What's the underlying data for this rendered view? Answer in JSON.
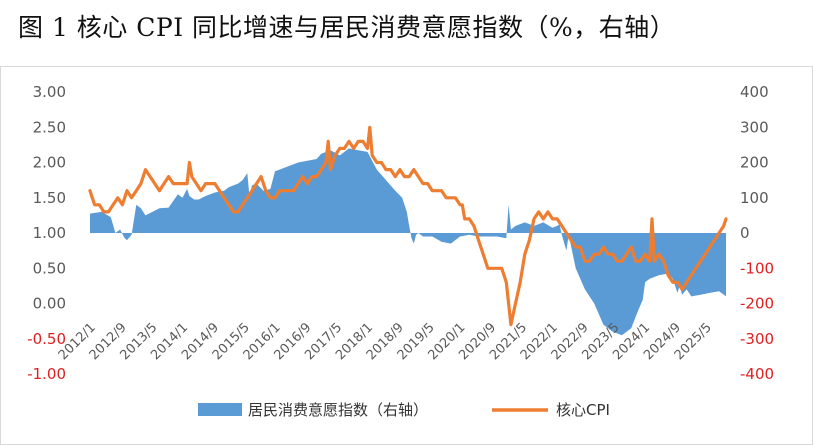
{
  "title": "图 1 核心 CPI 同比增速与居民消费意愿指数（%，右轴）",
  "chart_data": {
    "type": "line",
    "title": "图 1 核心 CPI 同比增速与居民消费意愿指数（%，右轴）",
    "left_axis": {
      "ylim": [
        -1.0,
        3.0
      ],
      "ticks": [
        "3.00",
        "2.50",
        "2.00",
        "1.50",
        "1.00",
        "0.50",
        "0.00",
        "-0.50",
        "-1.00"
      ]
    },
    "right_axis": {
      "ylim": [
        -400,
        400
      ],
      "ticks": [
        "400",
        "300",
        "200",
        "100",
        "0",
        "-100",
        "-200",
        "-300",
        "-400"
      ]
    },
    "x_tick_labels": [
      "2012/1",
      "2012/9",
      "2013/5",
      "2014/1",
      "2014/9",
      "2015/5",
      "2016/1",
      "2016/9",
      "2017/5",
      "2018/1",
      "2018/9",
      "2019/5",
      "2020/1",
      "2020/9",
      "2021/5",
      "2022/1",
      "2022/9",
      "2023/5",
      "2024/1",
      "2024/9",
      "2025/5"
    ],
    "x_range": [
      2012.0,
      2025.75
    ],
    "legend": {
      "placement": "bottom",
      "entries": [
        "居民消费意愿指数（右轴）",
        "核心CPI"
      ]
    },
    "series": [
      {
        "name": "居民消费意愿指数（右轴）",
        "type": "area",
        "axis": "right",
        "color": "#5b9bd5",
        "x": [
          2012.0,
          2012.25,
          2012.45,
          2012.55,
          2012.65,
          2012.75,
          2012.8,
          2012.9,
          2013.0,
          2013.1,
          2013.2,
          2013.35,
          2013.5,
          2013.7,
          2013.9,
          2014.0,
          2014.1,
          2014.15,
          2014.25,
          2014.35,
          2014.5,
          2014.7,
          2014.9,
          2015.0,
          2015.1,
          2015.2,
          2015.3,
          2015.4,
          2015.45,
          2015.5,
          2015.6,
          2015.75,
          2015.9,
          2016.0,
          2016.1,
          2016.3,
          2016.5,
          2016.7,
          2016.9,
          2017.0,
          2017.2,
          2017.4,
          2017.6,
          2017.8,
          2018.0,
          2018.2,
          2018.4,
          2018.6,
          2018.75,
          2018.85,
          2018.9,
          2018.95,
          2019.0,
          2019.05,
          2019.1,
          2019.2,
          2019.4,
          2019.6,
          2019.8,
          2020.0,
          2020.2,
          2020.4,
          2020.6,
          2020.8,
          2021.0,
          2021.05,
          2021.1,
          2021.2,
          2021.4,
          2021.6,
          2021.8,
          2022.0,
          2022.1,
          2022.15,
          2022.2,
          2022.3,
          2022.35,
          2022.5,
          2022.7,
          2022.9,
          2023.1,
          2023.3,
          2023.5,
          2023.7,
          2023.85,
          2023.95,
          2024.0,
          2024.1,
          2024.3,
          2024.5,
          2024.6,
          2024.7,
          2024.75,
          2024.8,
          2024.9,
          2025.0,
          2025.2,
          2025.4,
          2025.6,
          2025.75
        ],
        "values": [
          55,
          60,
          45,
          0,
          10,
          -15,
          -20,
          -5,
          80,
          70,
          50,
          60,
          70,
          72,
          110,
          100,
          125,
          105,
          95,
          95,
          105,
          115,
          120,
          130,
          135,
          140,
          150,
          170,
          100,
          135,
          140,
          120,
          125,
          175,
          180,
          190,
          200,
          205,
          210,
          225,
          235,
          220,
          240,
          235,
          230,
          180,
          150,
          120,
          100,
          60,
          20,
          -15,
          -30,
          -5,
          0,
          -10,
          -10,
          -25,
          -30,
          -10,
          -5,
          -10,
          -10,
          -10,
          -15,
          80,
          10,
          20,
          30,
          20,
          30,
          15,
          20,
          25,
          -5,
          -50,
          -5,
          -100,
          -160,
          -200,
          -260,
          -280,
          -290,
          -270,
          -220,
          -190,
          -140,
          -130,
          -120,
          -115,
          -130,
          -170,
          -150,
          -175,
          -160,
          -180,
          -175,
          -170,
          -165,
          -180
        ]
      },
      {
        "name": "核心CPI",
        "type": "line",
        "axis": "left",
        "color": "#ed7d31",
        "x": [
          2012.0,
          2012.1,
          2012.2,
          2012.3,
          2012.4,
          2012.5,
          2012.6,
          2012.7,
          2012.8,
          2012.9,
          2013.0,
          2013.1,
          2013.2,
          2013.3,
          2013.4,
          2013.5,
          2013.6,
          2013.7,
          2013.8,
          2013.9,
          2014.0,
          2014.1,
          2014.15,
          2014.2,
          2014.3,
          2014.4,
          2014.5,
          2014.6,
          2014.7,
          2014.8,
          2014.9,
          2015.0,
          2015.1,
          2015.2,
          2015.3,
          2015.4,
          2015.5,
          2015.6,
          2015.7,
          2015.8,
          2015.9,
          2016.0,
          2016.1,
          2016.2,
          2016.3,
          2016.4,
          2016.5,
          2016.6,
          2016.7,
          2016.8,
          2016.9,
          2017.0,
          2017.1,
          2017.15,
          2017.2,
          2017.3,
          2017.4,
          2017.5,
          2017.6,
          2017.7,
          2017.8,
          2017.9,
          2018.0,
          2018.05,
          2018.1,
          2018.2,
          2018.3,
          2018.4,
          2018.5,
          2018.6,
          2018.7,
          2018.8,
          2018.9,
          2019.0,
          2019.1,
          2019.2,
          2019.3,
          2019.4,
          2019.5,
          2019.6,
          2019.7,
          2019.8,
          2019.9,
          2020.0,
          2020.05,
          2020.1,
          2020.2,
          2020.3,
          2020.4,
          2020.5,
          2020.6,
          2020.7,
          2020.8,
          2020.9,
          2021.0,
          2021.1,
          2021.2,
          2021.3,
          2021.4,
          2021.5,
          2021.6,
          2021.7,
          2021.8,
          2021.9,
          2022.0,
          2022.1,
          2022.2,
          2022.3,
          2022.4,
          2022.5,
          2022.6,
          2022.7,
          2022.8,
          2022.9,
          2023.0,
          2023.1,
          2023.2,
          2023.3,
          2023.4,
          2023.5,
          2023.6,
          2023.7,
          2023.8,
          2023.9,
          2024.0,
          2024.1,
          2024.15,
          2024.2,
          2024.3,
          2024.4,
          2024.5,
          2024.6,
          2024.7,
          2024.8,
          2024.9,
          2025.0,
          2025.1,
          2025.2,
          2025.3,
          2025.4,
          2025.5,
          2025.6,
          2025.7,
          2025.75
        ],
        "values": [
          1.6,
          1.4,
          1.4,
          1.3,
          1.3,
          1.4,
          1.5,
          1.4,
          1.6,
          1.5,
          1.6,
          1.7,
          1.9,
          1.8,
          1.7,
          1.6,
          1.7,
          1.8,
          1.7,
          1.7,
          1.7,
          1.7,
          2.0,
          1.8,
          1.7,
          1.6,
          1.7,
          1.7,
          1.7,
          1.6,
          1.5,
          1.4,
          1.3,
          1.3,
          1.4,
          1.5,
          1.6,
          1.7,
          1.8,
          1.6,
          1.5,
          1.5,
          1.6,
          1.6,
          1.6,
          1.6,
          1.7,
          1.8,
          1.7,
          1.8,
          1.8,
          1.9,
          2.0,
          2.3,
          1.9,
          2.1,
          2.2,
          2.2,
          2.3,
          2.2,
          2.3,
          2.3,
          2.2,
          2.5,
          2.1,
          2.0,
          2.0,
          1.9,
          1.9,
          1.8,
          1.9,
          1.8,
          1.8,
          1.9,
          1.8,
          1.7,
          1.7,
          1.6,
          1.6,
          1.6,
          1.5,
          1.5,
          1.5,
          1.4,
          1.4,
          1.2,
          1.2,
          1.1,
          0.9,
          0.7,
          0.5,
          0.5,
          0.5,
          0.5,
          0.3,
          -0.3,
          0.0,
          0.3,
          0.7,
          0.9,
          1.2,
          1.3,
          1.2,
          1.3,
          1.2,
          1.2,
          1.1,
          1.0,
          0.9,
          0.8,
          0.8,
          0.6,
          0.6,
          0.7,
          0.7,
          0.8,
          0.7,
          0.7,
          0.6,
          0.6,
          0.7,
          0.8,
          0.6,
          0.6,
          0.7,
          0.6,
          1.2,
          0.6,
          0.7,
          0.6,
          0.4,
          0.3,
          0.3,
          0.2,
          0.3,
          0.4,
          0.5,
          0.6,
          0.7,
          0.8,
          0.9,
          1.0,
          1.1,
          1.2
        ]
      }
    ]
  }
}
